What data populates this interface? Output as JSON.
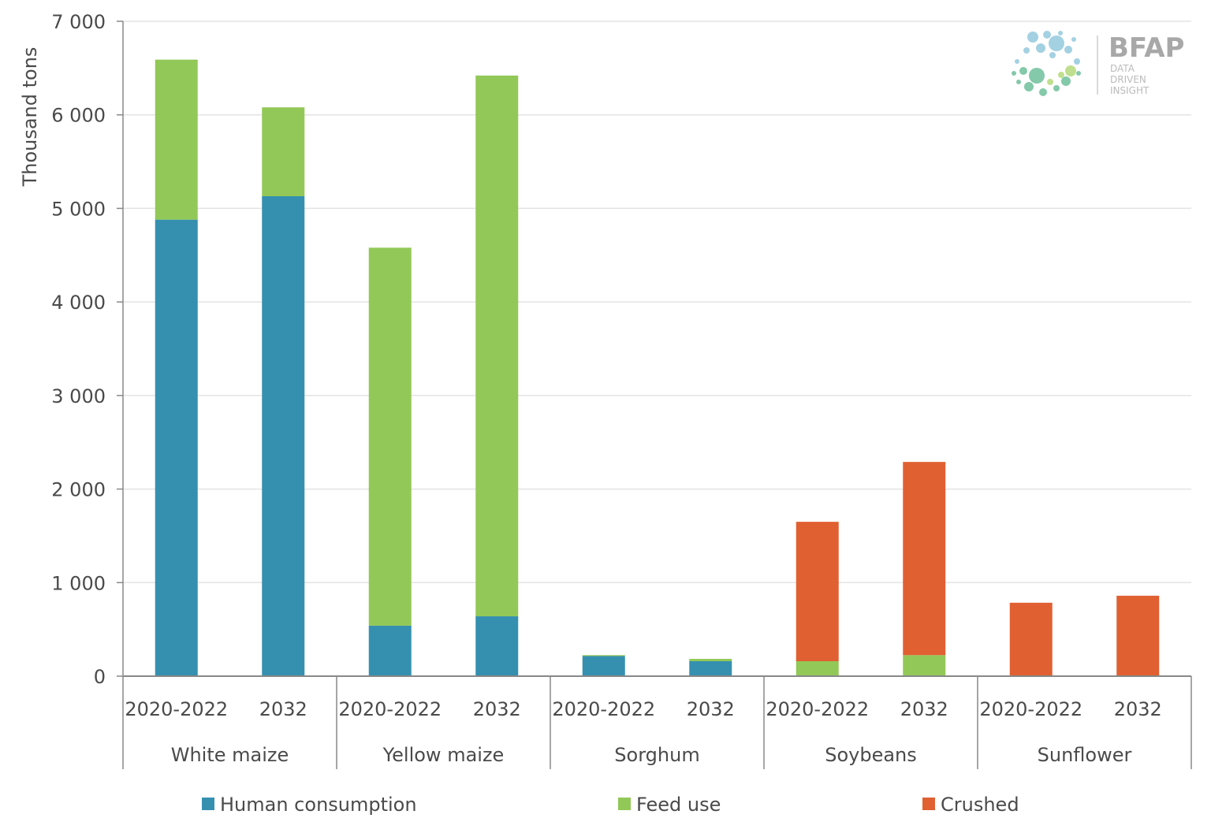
{
  "chart_data": {
    "type": "bar",
    "stacked": true,
    "ylabel": "Thousand tons",
    "ylim": [
      0,
      7000
    ],
    "yticks": [
      "0",
      "1 000",
      "2 000",
      "3 000",
      "4 000",
      "5 000",
      "6 000",
      "7 000"
    ],
    "grid": true,
    "groups": [
      "White maize",
      "Yellow maize",
      "Sorghum",
      "Soybeans",
      "Sunflower"
    ],
    "periods": [
      "2020-2022",
      "2032"
    ],
    "series": [
      {
        "name": "Human consumption",
        "color": "#3590b0",
        "values": [
          4880,
          5130,
          540,
          640,
          215,
          160,
          0,
          0,
          0,
          0
        ]
      },
      {
        "name": "Feed use",
        "color": "#92c857",
        "values": [
          1710,
          950,
          4040,
          5780,
          10,
          25,
          160,
          225,
          0,
          0
        ]
      },
      {
        "name": "Crushed",
        "color": "#e06032",
        "values": [
          0,
          0,
          0,
          0,
          0,
          0,
          1490,
          2065,
          785,
          860
        ]
      }
    ],
    "legend_position": "bottom"
  },
  "logo": {
    "name": "BFAP",
    "tagline": [
      "DATA",
      "DRIVEN",
      "INSIGHT"
    ]
  }
}
